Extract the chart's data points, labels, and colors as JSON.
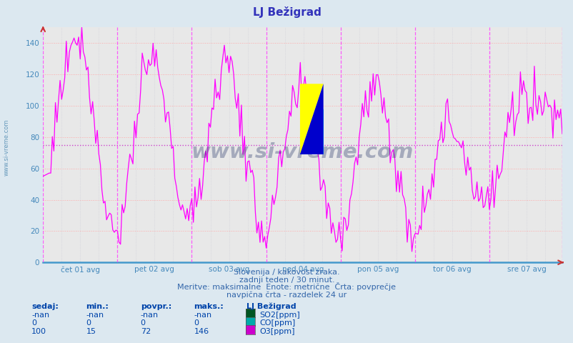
{
  "title": "LJ Bežigrad",
  "title_color": "#3333bb",
  "bg_color": "#dce8f0",
  "plot_bg_color": "#e8e8e8",
  "ylim": [
    0,
    150
  ],
  "yticks": [
    0,
    20,
    40,
    60,
    80,
    100,
    120,
    140
  ],
  "x_labels": [
    "čet 01 avg",
    "pet 02 avg",
    "sob 03 avg",
    "ned 04 avg",
    "pon 05 avg",
    "tor 06 avg",
    "sre 07 avg"
  ],
  "hline_y": 75,
  "hline_color": "#cc44cc",
  "hline_style": "dotted",
  "vline_color": "#ff44ff",
  "vline_style": "dashed",
  "hgrid_color": "#ffaaaa",
  "vgrid_color": "#bbbbcc",
  "line_color": "#ff00ff",
  "tick_color": "#4488bb",
  "axis_color": "#4499cc",
  "watermark": "www.si-vreme.com",
  "watermark_color": "#1a2a60",
  "side_watermark": "www.si-vreme.com",
  "side_watermark_color": "#6699bb",
  "sub_text1": "Slovenija / kakovost zraka.",
  "sub_text2": "zadnji teden / 30 minut.",
  "sub_text3": "Meritve: maksimalne  Enote: metrične  Črta: povprečje",
  "sub_text4": "navpična črta - razdelek 24 ur",
  "legend_title": "LJ Bežigrad",
  "legend_entries": [
    "SO2[ppm]",
    "CO[ppm]",
    "O3[ppm]"
  ],
  "legend_colors": [
    "#005522",
    "#00aaaa",
    "#cc00cc"
  ],
  "table_headers": [
    "sedaj:",
    "min.:",
    "povpr.:",
    "maks.:"
  ],
  "table_row0": [
    "-nan",
    "-nan",
    "-nan",
    "-nan"
  ],
  "table_row1": [
    "0",
    "0",
    "0",
    "0"
  ],
  "table_row2": [
    "100",
    "15",
    "72",
    "146"
  ],
  "n_points": 336,
  "pts_per_day": 48,
  "logo_yellow": "#ffff00",
  "logo_cyan": "#00ccff",
  "logo_blue": "#0000cc",
  "logo_darkblue": "#000088"
}
